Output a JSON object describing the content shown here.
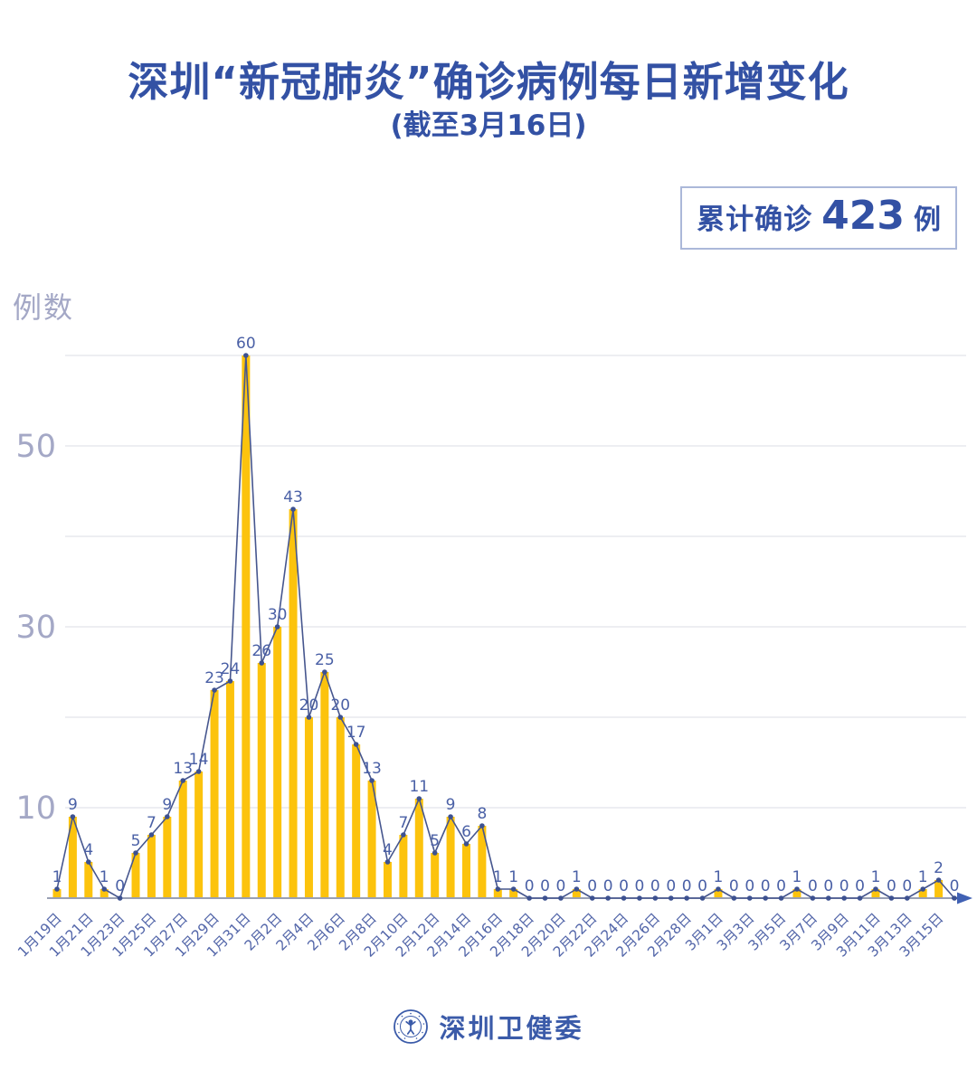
{
  "header": {
    "title": "深圳“新冠肺炎”确诊病例每日新增变化",
    "subtitle": "(截至3月16日)"
  },
  "badge": {
    "label": "累计确诊",
    "value": "423",
    "unit": "例"
  },
  "footer": {
    "org": "深圳卫健委",
    "logo_icon": "shenzhen-health-commission-emblem"
  },
  "chart_data": {
    "type": "line",
    "title": "深圳“新冠肺炎”确诊病例每日新增变化",
    "subtitle": "(截至3月16日)",
    "annotation": "累计确诊 423 例",
    "cumulative_total": 423,
    "ylabel": "例数",
    "xlabel": "",
    "categories": [
      "1月19日",
      "1月20日",
      "1月21日",
      "1月22日",
      "1月23日",
      "1月24日",
      "1月25日",
      "1月26日",
      "1月27日",
      "1月28日",
      "1月29日",
      "1月30日",
      "1月31日",
      "2月1日",
      "2月2日",
      "2月3日",
      "2月4日",
      "2月5日",
      "2月6日",
      "2月7日",
      "2月8日",
      "2月9日",
      "2月10日",
      "2月11日",
      "2月12日",
      "2月13日",
      "2月14日",
      "2月15日",
      "2月16日",
      "2月17日",
      "2月18日",
      "2月19日",
      "2月20日",
      "2月21日",
      "2月22日",
      "2月23日",
      "2月24日",
      "2月25日",
      "2月26日",
      "2月27日",
      "2月28日",
      "2月29日",
      "3月1日",
      "3月2日",
      "3月3日",
      "3月4日",
      "3月5日",
      "3月6日",
      "3月7日",
      "3月8日",
      "3月9日",
      "3月10日",
      "3月11日",
      "3月12日",
      "3月13日",
      "3月14日",
      "3月15日",
      "3月16日"
    ],
    "values": [
      1,
      9,
      4,
      1,
      0,
      5,
      7,
      9,
      13,
      14,
      23,
      24,
      60,
      26,
      30,
      43,
      20,
      25,
      20,
      17,
      13,
      4,
      7,
      11,
      5,
      9,
      6,
      8,
      1,
      1,
      0,
      0,
      0,
      1,
      0,
      0,
      0,
      0,
      0,
      0,
      0,
      0,
      1,
      0,
      0,
      0,
      0,
      1,
      0,
      0,
      0,
      0,
      1,
      0,
      0,
      1,
      2,
      0
    ],
    "ylim": [
      0,
      62
    ],
    "y_gridlines": [
      10,
      20,
      30,
      40,
      50,
      60
    ],
    "y_tick_labels": [
      10,
      30,
      50
    ],
    "layout": {
      "x_label_interval": 2,
      "grid": "horizontal",
      "legend": "none",
      "bars_under_line": true,
      "value_labels": "above-points",
      "x_labels_rotated_degrees": -45
    },
    "colors": {
      "bar": "#FCC30D",
      "line": "#46568E",
      "point": "#3D5190",
      "value_label": "#4A60A6",
      "x_label": "#5366A9",
      "y_tick": "#A4A8C6",
      "gridline": "#E7E8EE",
      "axis": "#99A0B4",
      "arrow": "#4061B4",
      "title_blue": "#3351A4",
      "badge_border": "#ABB8D9"
    }
  }
}
